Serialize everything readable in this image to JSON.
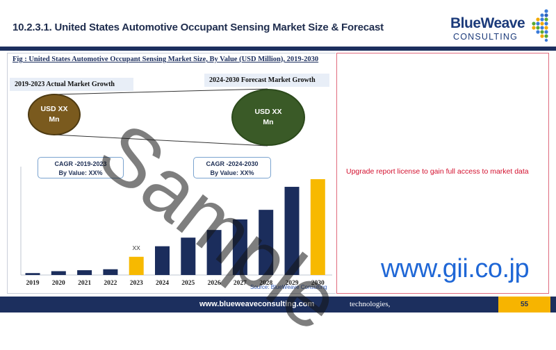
{
  "header": {
    "title": "10.2.3.1. United States Automotive Occupant Sensing Market Size & Forecast"
  },
  "logo": {
    "main": "BlueWeave",
    "sub": "CONSULTING"
  },
  "figure": {
    "caption": "Fig : United States Automotive Occupant Sensing Market Size, By Value (USD Million), 2019-2030",
    "actual_tag": "2019-2023 Actual Market Growth",
    "forecast_tag": "2024-2030 Forecast Market Growth",
    "actual_circle_line1": "USD XX",
    "actual_circle_line2": "Mn",
    "forecast_circle_line1": "USD XX",
    "forecast_circle_line2": "Mn",
    "cagr_actual_line1": "CAGR -2019-2023",
    "cagr_actual_line2": "By Value: XX%",
    "cagr_forecast_line1": "CAGR -2024-2030",
    "cagr_forecast_line2": "By Value: XX%",
    "source": "Source: BlueWeave Consulting"
  },
  "chart_data": {
    "type": "bar",
    "categories": [
      "2019",
      "2020",
      "2021",
      "2022",
      "2023",
      "2024",
      "2025",
      "2026",
      "2027",
      "2028",
      "2029",
      "2030"
    ],
    "values": [
      2,
      4,
      5,
      6,
      19,
      30,
      39,
      47,
      58,
      68,
      92,
      100
    ],
    "highlight_categories": [
      "2023",
      "2030"
    ],
    "data_labels": {
      "2023": "XX"
    },
    "ylim": [
      0,
      100
    ],
    "grid": false,
    "colors": {
      "bar": "#1b2d5c",
      "highlight": "#f7b900"
    }
  },
  "right_panel": {
    "upgrade_text": "Upgrade report license to gain full access to market data",
    "gii_text": "www.gii.co.jp"
  },
  "footer": {
    "url": "www.blueweaveconsulting.com",
    "tech": "technologies,",
    "page": "55"
  },
  "watermark": "Sample"
}
